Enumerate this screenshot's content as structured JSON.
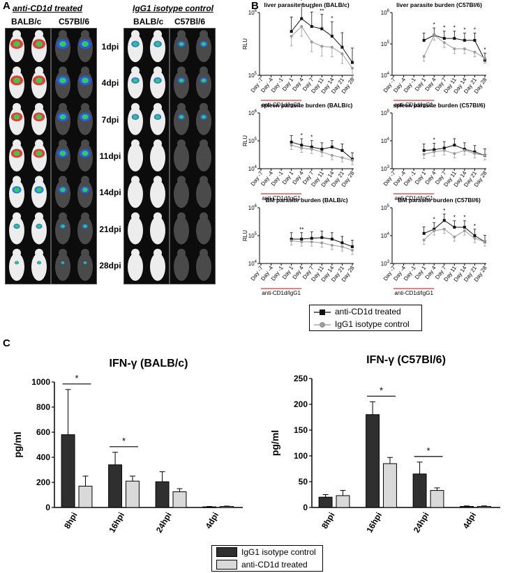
{
  "panels": {
    "a": "A",
    "b": "B",
    "c": "C"
  },
  "panel_a": {
    "group1_title": "anti-CD1d treated",
    "group2_title": "IgG1 isotype control",
    "strain1": "BALB/c",
    "strain2": "C57Bl/6",
    "timepoints": [
      "1dpi",
      "4dpi",
      "7dpi",
      "11dpi",
      "14dpi",
      "21dpi",
      "28dpi"
    ]
  },
  "panel_b": {
    "legend": {
      "treated": "anti-CD1d treated",
      "control": "IgG1 isotype control"
    },
    "x_ticks": [
      "Day -7",
      "Day -4",
      "Day -1",
      "Day 1",
      "Day 4",
      "Day 7",
      "Day 11",
      "Day 14",
      "Day 21",
      "Day 28"
    ],
    "treatment_label": "anti-CD1d/IgG1"
  },
  "panel_c": {
    "legend": {
      "control": "IgG1 isotype control",
      "treated": "anti-CD1d treated"
    }
  },
  "colors": {
    "treated_line": "#111111",
    "control_line": "#9a9a9a",
    "dark_bar": "#2f2f2f",
    "light_bar": "#d9d9d9",
    "accent_red": "#cc0000"
  },
  "chart_data": [
    {
      "type": "line",
      "title": "liver parasite burden (BALB/c)",
      "ylabel": "RLU",
      "scale": "log",
      "ylim_ticks": [
        "10^5",
        "10^6"
      ],
      "x": [
        "Day 1",
        "Day 4",
        "Day 7",
        "Day 11",
        "Day 14",
        "Day 21",
        "Day 28"
      ],
      "series": [
        {
          "name": "anti-CD1d treated",
          "values": [
            500000,
            800000,
            600000,
            550000,
            420000,
            280000,
            160000
          ]
        },
        {
          "name": "IgG1 isotype control",
          "values": [
            420000,
            600000,
            340000,
            290000,
            280000,
            220000,
            130000
          ]
        }
      ],
      "annotations": [
        "*",
        "**",
        "**",
        "*"
      ]
    },
    {
      "type": "line",
      "title": "liver parasite burden (C57Bl/6)",
      "ylabel": "",
      "scale": "log",
      "ylim_ticks": [
        "10^4",
        "10^5",
        "10^6"
      ],
      "x": [
        "Day 1",
        "Day 4",
        "Day 7",
        "Day 11",
        "Day 14",
        "Day 21",
        "Day 28"
      ],
      "series": [
        {
          "name": "anti-CD1d treated",
          "values": [
            130000,
            190000,
            150000,
            150000,
            130000,
            130000,
            30000
          ]
        },
        {
          "name": "IgG1 isotype control",
          "values": [
            40000,
            190000,
            110000,
            70000,
            70000,
            55000,
            35000
          ]
        }
      ],
      "annotations": [
        "*",
        "*",
        "*",
        "*",
        "*",
        "*"
      ]
    },
    {
      "type": "line",
      "title": "spleen parasite burden (BALB/c)",
      "ylabel": "RLU",
      "scale": "log",
      "ylim_ticks": [
        "10^4",
        "10^5",
        "10^6"
      ],
      "x": [
        "Day 1",
        "Day 4",
        "Day 7",
        "Day 11",
        "Day 14",
        "Day 21",
        "Day 28"
      ],
      "series": [
        {
          "name": "anti-CD1d treated",
          "values": [
            90000,
            70000,
            60000,
            50000,
            60000,
            45000,
            22000
          ]
        },
        {
          "name": "IgG1 isotype control",
          "values": [
            70000,
            55000,
            50000,
            40000,
            30000,
            25000,
            20000
          ]
        }
      ],
      "annotations": [
        "*",
        "*"
      ]
    },
    {
      "type": "line",
      "title": "spleen parasite burden (C57Bl/6)",
      "ylabel": "",
      "scale": "log",
      "ylim_ticks": [
        "10^3",
        "10^4",
        "10^5"
      ],
      "x": [
        "Day 1",
        "Day 4",
        "Day 7",
        "Day 11",
        "Day 14",
        "Day 21",
        "Day 28"
      ],
      "series": [
        {
          "name": "anti-CD1d treated",
          "values": [
            4500,
            4800,
            5500,
            7000,
            5000,
            4000,
            3000
          ]
        },
        {
          "name": "IgG1 isotype control",
          "values": [
            3300,
            4000,
            4500,
            3500,
            4500,
            3500,
            3000
          ]
        }
      ],
      "annotations": [
        "*"
      ]
    },
    {
      "type": "line",
      "title": "BM parasite burden (BALB/c)",
      "ylabel": "RLU",
      "scale": "log",
      "ylim_ticks": [
        "10^4",
        "10^5",
        "10^6"
      ],
      "x": [
        "Day 1",
        "Day 4",
        "Day 7",
        "Day 11",
        "Day 14",
        "Day 21",
        "Day 28"
      ],
      "series": [
        {
          "name": "anti-CD1d treated",
          "values": [
            75000,
            75000,
            80000,
            85000,
            75000,
            55000,
            40000
          ]
        },
        {
          "name": "IgG1 isotype control",
          "values": [
            65000,
            60000,
            60000,
            55000,
            45000,
            40000,
            30000
          ]
        }
      ],
      "annotations": [
        "**"
      ]
    },
    {
      "type": "line",
      "title": "BM parasite burden (C57Bl/6)",
      "ylabel": "",
      "scale": "log",
      "ylim_ticks": [
        "10^3",
        "10^4",
        "10^5"
      ],
      "x": [
        "Day 1",
        "Day 4",
        "Day 7",
        "Day 11",
        "Day 14",
        "Day 21",
        "Day 28"
      ],
      "series": [
        {
          "name": "anti-CD1d treated",
          "values": [
            12000,
            17000,
            35000,
            20000,
            20000,
            10000,
            6000
          ]
        },
        {
          "name": "IgG1 isotype control",
          "values": [
            7000,
            15000,
            17000,
            9000,
            15000,
            8000,
            6000
          ]
        }
      ],
      "annotations": [
        "*",
        "*",
        "*",
        "*",
        "*"
      ]
    },
    {
      "type": "bar",
      "title": "IFN-γ (BALB/c)",
      "ylabel": "pg/ml",
      "ylim": [
        0,
        1000
      ],
      "yticks": [
        0,
        200,
        400,
        600,
        800,
        1000
      ],
      "categories": [
        "8hpi",
        "16hpi",
        "24hpi",
        "4dpi"
      ],
      "series": [
        {
          "name": "IgG1 isotype control",
          "values": [
            580,
            340,
            205,
            5
          ],
          "errors": [
            360,
            100,
            80,
            3
          ]
        },
        {
          "name": "anti-CD1d treated",
          "values": [
            170,
            210,
            125,
            8
          ],
          "errors": [
            80,
            40,
            25,
            3
          ]
        }
      ],
      "annotations": [
        "*",
        "*"
      ]
    },
    {
      "type": "bar",
      "title": "IFN-γ (C57Bl/6)",
      "ylabel": "pg/ml",
      "ylim": [
        0,
        250
      ],
      "yticks": [
        0,
        50,
        100,
        150,
        200,
        250
      ],
      "categories": [
        "8hpi",
        "16hpi",
        "24hpi",
        "4dpi"
      ],
      "series": [
        {
          "name": "IgG1 isotype control",
          "values": [
            20,
            180,
            65,
            2
          ],
          "errors": [
            5,
            25,
            23,
            1
          ]
        },
        {
          "name": "anti-CD1d treated",
          "values": [
            23,
            85,
            33,
            2
          ],
          "errors": [
            10,
            12,
            5,
            1
          ]
        }
      ],
      "annotations": [
        "*",
        "*"
      ]
    }
  ]
}
